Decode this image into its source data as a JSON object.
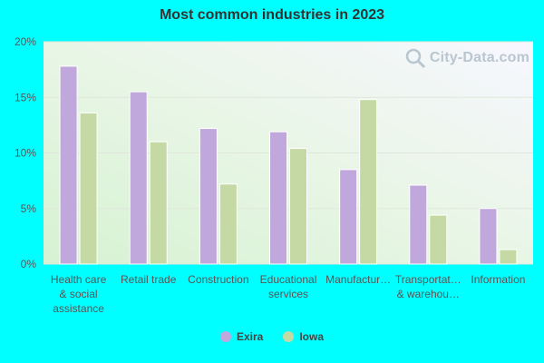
{
  "chart_data": {
    "type": "bar",
    "title": "Most common industries in 2023",
    "categories": [
      [
        "Health care",
        "& social",
        "assistance"
      ],
      [
        "Retail trade"
      ],
      [
        "Construction"
      ],
      [
        "Educational",
        "services"
      ],
      [
        "Manufactur…"
      ],
      [
        "Transportat…",
        "& warehou…"
      ],
      [
        "Information"
      ]
    ],
    "series": [
      {
        "name": "Exira",
        "color": "#c0a8dc",
        "values": [
          17.8,
          15.5,
          12.2,
          11.9,
          8.5,
          7.1,
          5.0
        ]
      },
      {
        "name": "Iowa",
        "color": "#c5d9a5",
        "values": [
          13.6,
          11.0,
          7.2,
          10.4,
          14.8,
          4.4,
          1.3
        ]
      }
    ],
    "ylim": [
      0,
      20
    ],
    "yticks": [
      "0%",
      "5%",
      "10%",
      "15%",
      "20%"
    ],
    "xlabel": "",
    "ylabel": "",
    "grid": true,
    "legend": "bottom-center"
  },
  "watermark": "City-Data.com"
}
